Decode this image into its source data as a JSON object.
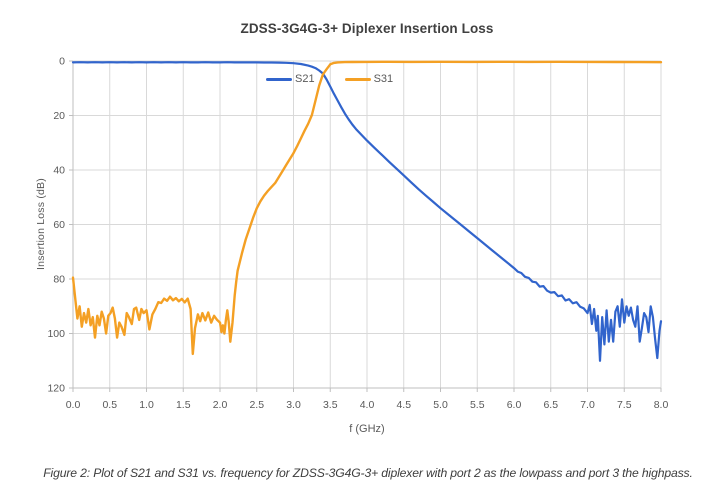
{
  "title": "ZDSS-3G4G-3+ Diplexer Insertion Loss",
  "caption": "Figure 2: Plot of S21 and S31 vs. frequency for ZDSS-3G4G-3+ diplexer with port 2 as the lowpass and port 3 the highpass.",
  "chart_data": {
    "type": "line",
    "title": "ZDSS-3G4G-3+ Diplexer Insertion Loss",
    "xlabel": "f (GHz)",
    "ylabel": "Insertion Loss (dB)",
    "xlim": [
      0,
      8
    ],
    "ylim": [
      0,
      120
    ],
    "y_axis_inverted_loss": true,
    "grid": true,
    "legend_position": "top-inside",
    "style": {
      "grid_color": "#D9D9D9",
      "axis_color": "#BFBFBF",
      "tick_color": "#BFBFBF",
      "tick_label_color": "#595959",
      "title_color": "#404040",
      "background": "#FFFFFF"
    },
    "x_ticks": [
      {
        "value": 0.0,
        "label": "0.0"
      },
      {
        "value": 0.5,
        "label": "0.5"
      },
      {
        "value": 1.0,
        "label": "1.0"
      },
      {
        "value": 1.5,
        "label": "1.5"
      },
      {
        "value": 2.0,
        "label": "2.0"
      },
      {
        "value": 2.5,
        "label": "2.5"
      },
      {
        "value": 3.0,
        "label": "3.0"
      },
      {
        "value": 3.5,
        "label": "3.5"
      },
      {
        "value": 4.0,
        "label": "4.0"
      },
      {
        "value": 4.5,
        "label": "4.5"
      },
      {
        "value": 5.0,
        "label": "5.0"
      },
      {
        "value": 5.5,
        "label": "5.5"
      },
      {
        "value": 6.0,
        "label": "6.0"
      },
      {
        "value": 6.5,
        "label": "6.5"
      },
      {
        "value": 7.0,
        "label": "7.0"
      },
      {
        "value": 7.5,
        "label": "7.5"
      },
      {
        "value": 8.0,
        "label": "8.0"
      }
    ],
    "y_ticks": [
      {
        "value": 0,
        "label": "0"
      },
      {
        "value": 20,
        "label": "20"
      },
      {
        "value": 40,
        "label": "40"
      },
      {
        "value": 60,
        "label": "60"
      },
      {
        "value": 80,
        "label": "80"
      },
      {
        "value": 100,
        "label": "100"
      },
      {
        "value": 120,
        "label": "120"
      }
    ],
    "series": [
      {
        "name": "S21",
        "role": "lowpass (port 2)",
        "color": "#3164CC",
        "stroke_width": 2.2,
        "points": [
          [
            0.0,
            0.5
          ],
          [
            0.1,
            0.45
          ],
          [
            0.2,
            0.5
          ],
          [
            0.3,
            0.45
          ],
          [
            0.4,
            0.5
          ],
          [
            0.5,
            0.45
          ],
          [
            0.6,
            0.5
          ],
          [
            0.7,
            0.45
          ],
          [
            0.8,
            0.5
          ],
          [
            0.9,
            0.45
          ],
          [
            1.0,
            0.5
          ],
          [
            1.1,
            0.45
          ],
          [
            1.2,
            0.5
          ],
          [
            1.3,
            0.45
          ],
          [
            1.4,
            0.5
          ],
          [
            1.5,
            0.45
          ],
          [
            1.6,
            0.5
          ],
          [
            1.7,
            0.5
          ],
          [
            1.8,
            0.45
          ],
          [
            1.9,
            0.5
          ],
          [
            2.0,
            0.5
          ],
          [
            2.1,
            0.45
          ],
          [
            2.2,
            0.5
          ],
          [
            2.3,
            0.5
          ],
          [
            2.4,
            0.5
          ],
          [
            2.5,
            0.5
          ],
          [
            2.6,
            0.55
          ],
          [
            2.7,
            0.55
          ],
          [
            2.8,
            0.6
          ],
          [
            2.9,
            0.65
          ],
          [
            3.0,
            0.8
          ],
          [
            3.1,
            1.1
          ],
          [
            3.2,
            1.7
          ],
          [
            3.25,
            2.1
          ],
          [
            3.3,
            2.6
          ],
          [
            3.35,
            3.5
          ],
          [
            3.4,
            4.6
          ],
          [
            3.45,
            6.8
          ],
          [
            3.5,
            9.4
          ],
          [
            3.55,
            12.0
          ],
          [
            3.6,
            14.5
          ],
          [
            3.65,
            17.0
          ],
          [
            3.7,
            19.3
          ],
          [
            3.75,
            21.4
          ],
          [
            3.8,
            23.3
          ],
          [
            3.85,
            25.0
          ],
          [
            3.9,
            26.4
          ],
          [
            3.95,
            27.8
          ],
          [
            4.0,
            29.2
          ],
          [
            4.1,
            31.8
          ],
          [
            4.2,
            34.4
          ],
          [
            4.3,
            37.0
          ],
          [
            4.4,
            39.5
          ],
          [
            4.5,
            42.0
          ],
          [
            4.6,
            44.5
          ],
          [
            4.7,
            47.0
          ],
          [
            4.8,
            49.4
          ],
          [
            4.9,
            51.7
          ],
          [
            5.0,
            54.0
          ],
          [
            5.1,
            56.2
          ],
          [
            5.2,
            58.4
          ],
          [
            5.3,
            60.6
          ],
          [
            5.4,
            62.8
          ],
          [
            5.5,
            65.0
          ],
          [
            5.6,
            67.2
          ],
          [
            5.7,
            69.4
          ],
          [
            5.8,
            71.6
          ],
          [
            5.9,
            73.8
          ],
          [
            6.0,
            76.0
          ],
          [
            6.05,
            77.3
          ],
          [
            6.1,
            77.8
          ],
          [
            6.15,
            79.2
          ],
          [
            6.2,
            79.6
          ],
          [
            6.25,
            81.0
          ],
          [
            6.3,
            81.2
          ],
          [
            6.35,
            82.8
          ],
          [
            6.4,
            82.6
          ],
          [
            6.45,
            84.3
          ],
          [
            6.5,
            85.0
          ],
          [
            6.55,
            84.8
          ],
          [
            6.6,
            86.3
          ],
          [
            6.65,
            86.0
          ],
          [
            6.7,
            87.9
          ],
          [
            6.75,
            87.4
          ],
          [
            6.8,
            88.9
          ],
          [
            6.85,
            88.5
          ],
          [
            6.9,
            90.2
          ],
          [
            6.95,
            90.8
          ],
          [
            7.0,
            92.5
          ],
          [
            7.03,
            89.5
          ],
          [
            7.06,
            96.5
          ],
          [
            7.09,
            91.0
          ],
          [
            7.12,
            99.0
          ],
          [
            7.14,
            93.5
          ],
          [
            7.17,
            110.0
          ],
          [
            7.2,
            94.0
          ],
          [
            7.23,
            104.0
          ],
          [
            7.26,
            91.5
          ],
          [
            7.29,
            103.0
          ],
          [
            7.32,
            95.0
          ],
          [
            7.35,
            103.0
          ],
          [
            7.38,
            92.0
          ],
          [
            7.41,
            90.0
          ],
          [
            7.44,
            97.5
          ],
          [
            7.47,
            87.5
          ],
          [
            7.5,
            96.0
          ],
          [
            7.53,
            90.0
          ],
          [
            7.56,
            93.5
          ],
          [
            7.59,
            90.5
          ],
          [
            7.62,
            95.0
          ],
          [
            7.65,
            97.5
          ],
          [
            7.68,
            90.0
          ],
          [
            7.71,
            103.0
          ],
          [
            7.74,
            98.0
          ],
          [
            7.77,
            92.5
          ],
          [
            7.8,
            94.0
          ],
          [
            7.83,
            99.5
          ],
          [
            7.86,
            90.0
          ],
          [
            7.89,
            94.0
          ],
          [
            7.92,
            102.0
          ],
          [
            7.95,
            109.0
          ],
          [
            7.98,
            99.0
          ],
          [
            8.0,
            95.5
          ]
        ]
      },
      {
        "name": "S31",
        "role": "highpass (port 3)",
        "color": "#F4A024",
        "stroke_width": 2.4,
        "points": [
          [
            0.0,
            79.5
          ],
          [
            0.03,
            87.0
          ],
          [
            0.06,
            94.5
          ],
          [
            0.09,
            90.0
          ],
          [
            0.12,
            97.5
          ],
          [
            0.15,
            92.5
          ],
          [
            0.18,
            96.0
          ],
          [
            0.21,
            91.0
          ],
          [
            0.24,
            97.0
          ],
          [
            0.27,
            94.0
          ],
          [
            0.3,
            101.5
          ],
          [
            0.33,
            93.5
          ],
          [
            0.36,
            97.0
          ],
          [
            0.39,
            92.0
          ],
          [
            0.42,
            94.5
          ],
          [
            0.45,
            100.0
          ],
          [
            0.48,
            93.5
          ],
          [
            0.51,
            92.5
          ],
          [
            0.54,
            90.5
          ],
          [
            0.57,
            94.5
          ],
          [
            0.6,
            101.5
          ],
          [
            0.63,
            96.0
          ],
          [
            0.66,
            97.5
          ],
          [
            0.7,
            100.5
          ],
          [
            0.73,
            92.5
          ],
          [
            0.76,
            94.0
          ],
          [
            0.8,
            96.5
          ],
          [
            0.83,
            91.0
          ],
          [
            0.86,
            90.5
          ],
          [
            0.9,
            95.0
          ],
          [
            0.93,
            91.0
          ],
          [
            0.96,
            92.5
          ],
          [
            1.0,
            91.5
          ],
          [
            1.04,
            98.5
          ],
          [
            1.08,
            93.0
          ],
          [
            1.12,
            91.0
          ],
          [
            1.16,
            88.5
          ],
          [
            1.2,
            88.8
          ],
          [
            1.24,
            87.2
          ],
          [
            1.28,
            88.0
          ],
          [
            1.32,
            86.5
          ],
          [
            1.36,
            87.8
          ],
          [
            1.4,
            87.0
          ],
          [
            1.44,
            88.2
          ],
          [
            1.48,
            87.3
          ],
          [
            1.52,
            88.6
          ],
          [
            1.56,
            87.2
          ],
          [
            1.6,
            91.0
          ],
          [
            1.63,
            107.5
          ],
          [
            1.66,
            98.0
          ],
          [
            1.7,
            93.0
          ],
          [
            1.73,
            95.5
          ],
          [
            1.76,
            92.5
          ],
          [
            1.8,
            95.2
          ],
          [
            1.84,
            92.3
          ],
          [
            1.88,
            96.0
          ],
          [
            1.92,
            93.5
          ],
          [
            1.96,
            95.0
          ],
          [
            2.0,
            96.0
          ],
          [
            2.02,
            99.5
          ],
          [
            2.04,
            97.0
          ],
          [
            2.06,
            100.0
          ],
          [
            2.08,
            95.0
          ],
          [
            2.1,
            91.5
          ],
          [
            2.12,
            96.0
          ],
          [
            2.14,
            103.0
          ],
          [
            2.17,
            96.0
          ],
          [
            2.2,
            86.0
          ],
          [
            2.22,
            81.0
          ],
          [
            2.24,
            77.0
          ],
          [
            2.3,
            70.5
          ],
          [
            2.35,
            65.5
          ],
          [
            2.4,
            61.5
          ],
          [
            2.45,
            57.5
          ],
          [
            2.5,
            54.0
          ],
          [
            2.55,
            51.5
          ],
          [
            2.6,
            49.4
          ],
          [
            2.65,
            47.7
          ],
          [
            2.7,
            46.2
          ],
          [
            2.75,
            44.8
          ],
          [
            2.8,
            42.6
          ],
          [
            2.85,
            40.4
          ],
          [
            2.9,
            38.2
          ],
          [
            2.95,
            36.0
          ],
          [
            3.0,
            33.8
          ],
          [
            3.05,
            31.2
          ],
          [
            3.1,
            28.4
          ],
          [
            3.15,
            25.6
          ],
          [
            3.2,
            23.0
          ],
          [
            3.25,
            19.8
          ],
          [
            3.3,
            14.5
          ],
          [
            3.35,
            9.0
          ],
          [
            3.4,
            4.9
          ],
          [
            3.45,
            3.0
          ],
          [
            3.5,
            1.2
          ],
          [
            3.55,
            0.7
          ],
          [
            3.6,
            0.5
          ],
          [
            3.7,
            0.4
          ],
          [
            3.8,
            0.35
          ],
          [
            4.0,
            0.32
          ],
          [
            4.3,
            0.3
          ],
          [
            4.6,
            0.32
          ],
          [
            5.0,
            0.3
          ],
          [
            5.4,
            0.32
          ],
          [
            5.8,
            0.3
          ],
          [
            6.2,
            0.32
          ],
          [
            6.6,
            0.3
          ],
          [
            7.0,
            0.32
          ],
          [
            7.4,
            0.35
          ],
          [
            7.7,
            0.4
          ],
          [
            8.0,
            0.45
          ]
        ]
      }
    ]
  },
  "legend": {
    "items": [
      {
        "label": "S21"
      },
      {
        "label": "S31"
      }
    ]
  }
}
